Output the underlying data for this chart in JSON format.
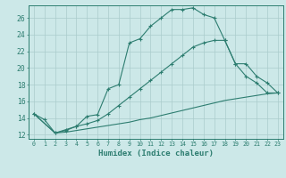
{
  "xlabel": "Humidex (Indice chaleur)",
  "background_color": "#cce8e8",
  "grid_color": "#aacccc",
  "line_color": "#2d7d70",
  "xlim": [
    -0.5,
    23.5
  ],
  "ylim": [
    11.5,
    27.5
  ],
  "xticks": [
    0,
    1,
    2,
    3,
    4,
    5,
    6,
    7,
    8,
    9,
    10,
    11,
    12,
    13,
    14,
    15,
    16,
    17,
    18,
    19,
    20,
    21,
    22,
    23
  ],
  "yticks": [
    12,
    14,
    16,
    18,
    20,
    22,
    24,
    26
  ],
  "s1x": [
    0,
    1,
    2,
    3,
    4,
    5,
    6,
    7,
    8,
    9,
    10,
    11,
    12,
    13,
    14,
    15,
    16,
    17,
    18,
    19,
    20,
    21,
    22,
    23
  ],
  "s1y": [
    14.5,
    13.8,
    12.2,
    12.6,
    13.0,
    14.2,
    14.4,
    17.5,
    18.0,
    23.0,
    23.5,
    25.0,
    26.0,
    27.0,
    27.0,
    27.2,
    26.4,
    26.0,
    23.3,
    20.5,
    20.5,
    19.0,
    18.2,
    17.0
  ],
  "s2x": [
    0,
    2,
    3,
    4,
    5,
    6,
    7,
    8,
    9,
    10,
    11,
    12,
    13,
    14,
    15,
    16,
    17,
    18,
    19,
    20,
    21,
    22,
    23
  ],
  "s2y": [
    14.5,
    12.2,
    12.5,
    13.0,
    13.3,
    13.7,
    14.5,
    15.5,
    16.5,
    17.5,
    18.5,
    19.5,
    20.5,
    21.5,
    22.5,
    23.0,
    23.3,
    23.3,
    20.5,
    19.0,
    18.2,
    17.0,
    17.0
  ],
  "s3x": [
    0,
    2,
    3,
    4,
    5,
    6,
    7,
    8,
    9,
    10,
    11,
    12,
    13,
    14,
    15,
    16,
    17,
    18,
    19,
    20,
    21,
    22,
    23
  ],
  "s3y": [
    14.5,
    12.2,
    12.3,
    12.5,
    12.7,
    12.9,
    13.1,
    13.3,
    13.5,
    13.8,
    14.0,
    14.3,
    14.6,
    14.9,
    15.2,
    15.5,
    15.8,
    16.1,
    16.3,
    16.5,
    16.7,
    16.9,
    17.0
  ]
}
